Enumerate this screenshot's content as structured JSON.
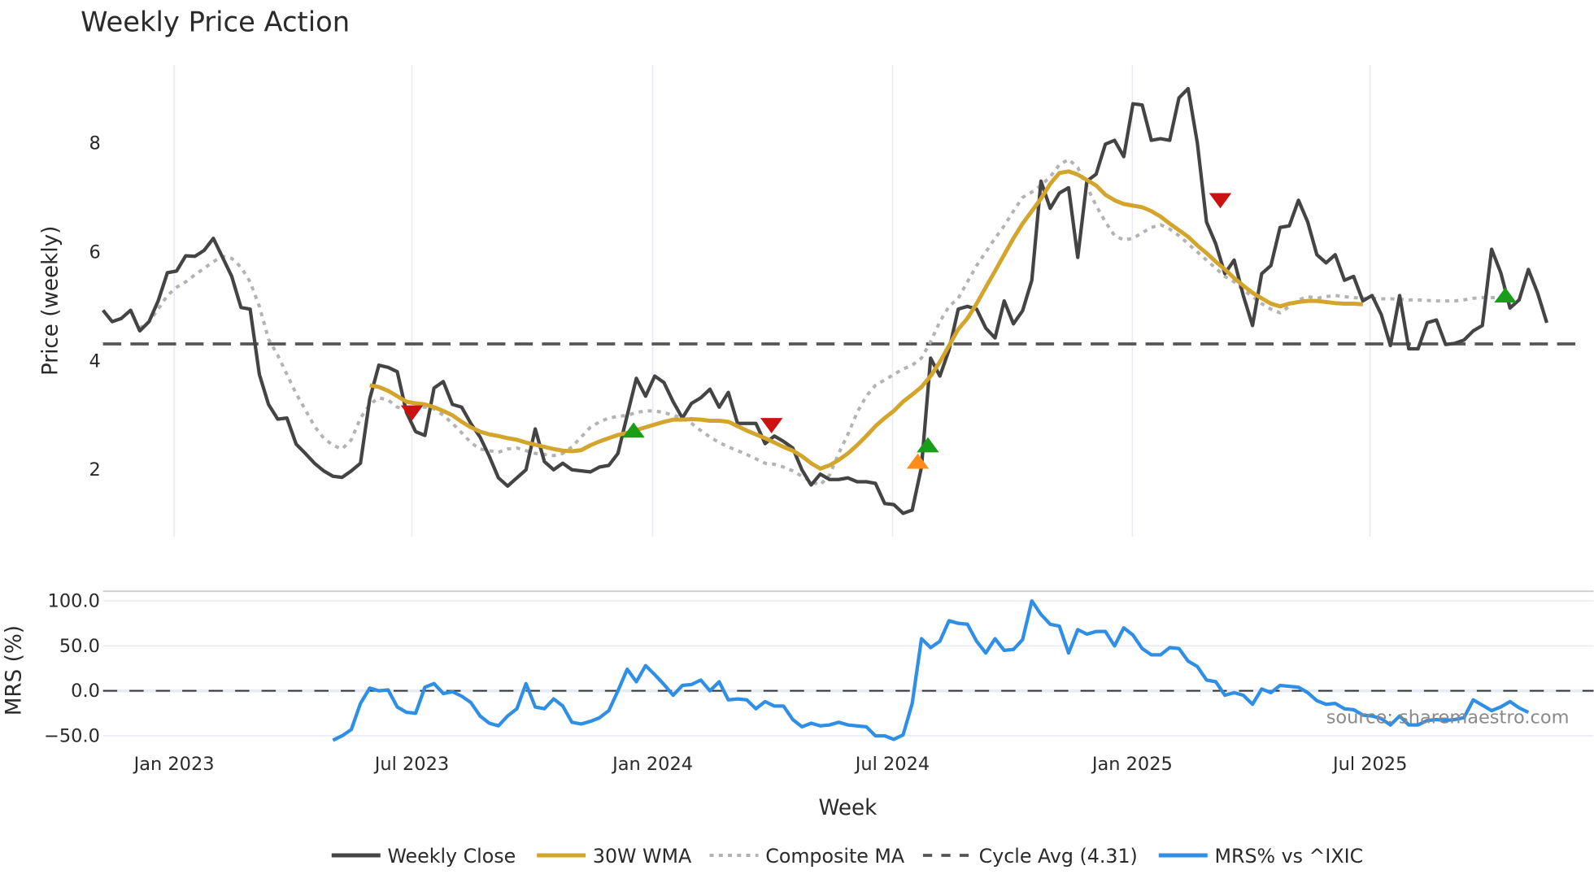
{
  "title": "Weekly Price Action",
  "source_text": "source: sharemaestro.com",
  "axes": {
    "price_ylabel": "Price (weekly)",
    "mrs_ylabel": "MRS (%)",
    "xlabel": "Week",
    "price_ticks": [
      "2",
      "4",
      "6",
      "8"
    ],
    "mrs_ticks": [
      "100.0",
      "50.0",
      "0.0",
      "−50.0"
    ],
    "x_ticks": [
      "Jan 2023",
      "Jul 2023",
      "Jan 2024",
      "Jul 2024",
      "Jan 2025",
      "Jul 2025"
    ]
  },
  "legend": [
    {
      "label": "Weekly Close",
      "color": "#444444",
      "style": "solid"
    },
    {
      "label": "30W WMA",
      "color": "#d4a52c",
      "style": "solid"
    },
    {
      "label": "Composite MA",
      "color": "#b3b3b3",
      "style": "dotted"
    },
    {
      "label": "Cycle Avg (4.31)",
      "color": "#555555",
      "style": "dashed"
    },
    {
      "label": "MRS% vs ^IXIC",
      "color": "#2f8fe6",
      "style": "solid"
    }
  ],
  "colors": {
    "close": "#444444",
    "wma": "#d4a52c",
    "composite": "#b3b3b3",
    "cycle": "#555555",
    "mrs": "#2f8fe6",
    "buy": "#1a9e1a",
    "sell": "#cc1111",
    "cross": "#ff8c1a"
  },
  "chart_data": [
    {
      "type": "line",
      "title": "Weekly Price Action",
      "xlabel": "",
      "ylabel": "Price (weekly)",
      "ylim": [
        0.8,
        9.5
      ],
      "x_ticks": [
        "Jan 2023",
        "Jul 2023",
        "Jan 2024",
        "Jul 2024",
        "Jan 2025",
        "Jul 2025"
      ],
      "x_unit": "week index (week 0 ≈ early Nov 2022)",
      "series": [
        {
          "name": "Weekly Close",
          "start": 0,
          "values": [
            4.93,
            4.72,
            4.78,
            4.93,
            4.55,
            4.72,
            5.1,
            5.62,
            5.65,
            5.93,
            5.92,
            6.03,
            6.25,
            5.9,
            5.55,
            4.98,
            4.95,
            3.75,
            3.2,
            2.93,
            2.95,
            2.47,
            2.3,
            2.12,
            1.98,
            1.88,
            1.86,
            1.98,
            2.12,
            3.3,
            3.92,
            3.88,
            3.8,
            3.05,
            2.7,
            2.63,
            3.5,
            3.62,
            3.2,
            3.15,
            2.85,
            2.6,
            2.25,
            1.85,
            1.7,
            1.85,
            2.0,
            2.75,
            2.15,
            2.0,
            2.12,
            2.0,
            1.98,
            1.96,
            2.05,
            2.08,
            2.3,
            3.0,
            3.68,
            3.35,
            3.72,
            3.6,
            3.25,
            2.95,
            3.22,
            3.32,
            3.48,
            3.15,
            3.42,
            2.85,
            2.85,
            2.85,
            2.48,
            2.62,
            2.52,
            2.4,
            2.0,
            1.72,
            1.92,
            1.82,
            1.82,
            1.85,
            1.78,
            1.78,
            1.75,
            1.38,
            1.36,
            1.2,
            1.26,
            2.05,
            4.05,
            3.72,
            4.2,
            4.95,
            5.0,
            4.95,
            4.6,
            4.42,
            5.1,
            4.68,
            4.92,
            5.48,
            7.3,
            6.8,
            7.08,
            7.18,
            5.9,
            7.3,
            7.43,
            7.98,
            8.05,
            7.75,
            8.72,
            8.7,
            8.05,
            8.08,
            8.05,
            8.83,
            9.0,
            8.0,
            6.55,
            6.15,
            5.6,
            5.85,
            5.2,
            4.65,
            5.6,
            5.75,
            6.45,
            6.48,
            6.95,
            6.55,
            5.95,
            5.8,
            5.95,
            5.48,
            5.55,
            5.1,
            5.2,
            4.85,
            4.28,
            5.2,
            4.22,
            4.22,
            4.7,
            4.75,
            4.3,
            4.32,
            4.38,
            4.55,
            4.65,
            6.05,
            5.62,
            4.97,
            5.12,
            5.68,
            5.25,
            4.7
          ]
        },
        {
          "name": "30W WMA",
          "start": 29,
          "values": [
            3.55,
            3.52,
            3.45,
            3.35,
            3.25,
            3.22,
            3.2,
            3.15,
            3.08,
            3.0,
            2.88,
            2.78,
            2.7,
            2.65,
            2.62,
            2.58,
            2.55,
            2.5,
            2.46,
            2.42,
            2.38,
            2.35,
            2.34,
            2.36,
            2.45,
            2.52,
            2.58,
            2.64,
            2.68,
            2.73,
            2.78,
            2.83,
            2.88,
            2.92,
            2.92,
            2.93,
            2.92,
            2.9,
            2.9,
            2.88,
            2.8,
            2.72,
            2.65,
            2.58,
            2.5,
            2.42,
            2.35,
            2.25,
            2.12,
            2.02,
            2.08,
            2.18,
            2.3,
            2.45,
            2.62,
            2.8,
            2.95,
            3.08,
            3.25,
            3.38,
            3.52,
            3.72,
            3.98,
            4.28,
            4.58,
            4.78,
            5.05,
            5.35,
            5.65,
            5.95,
            6.25,
            6.52,
            6.75,
            6.98,
            7.25,
            7.45,
            7.48,
            7.42,
            7.32,
            7.22,
            7.05,
            6.95,
            6.88,
            6.85,
            6.82,
            6.75,
            6.65,
            6.52,
            6.4,
            6.28,
            6.12,
            5.98,
            5.82,
            5.68,
            5.52,
            5.38,
            5.25,
            5.15,
            5.05,
            5.0,
            5.05,
            5.08,
            5.1,
            5.1,
            5.08,
            5.06,
            5.05,
            5.05,
            5.04
          ]
        },
        {
          "name": "Composite MA",
          "start": 4,
          "values": [
            4.6,
            4.72,
            4.95,
            5.2,
            5.35,
            5.45,
            5.58,
            5.7,
            5.82,
            5.92,
            5.88,
            5.72,
            5.45,
            5.0,
            4.4,
            4.1,
            3.75,
            3.4,
            3.1,
            2.8,
            2.58,
            2.45,
            2.38,
            2.55,
            2.95,
            3.2,
            3.32,
            3.28,
            3.15,
            3.12,
            3.15,
            3.15,
            3.12,
            3.0,
            2.85,
            2.68,
            2.5,
            2.38,
            2.35,
            2.32,
            2.38,
            2.4,
            2.35,
            2.3,
            2.28,
            2.26,
            2.3,
            2.42,
            2.6,
            2.78,
            2.88,
            2.95,
            2.98,
            3.0,
            3.05,
            3.08,
            3.08,
            3.05,
            3.0,
            2.95,
            2.85,
            2.72,
            2.6,
            2.5,
            2.42,
            2.35,
            2.28,
            2.2,
            2.12,
            2.1,
            2.05,
            1.98,
            1.88,
            1.78,
            1.72,
            1.9,
            2.3,
            2.65,
            3.05,
            3.35,
            3.55,
            3.65,
            3.75,
            3.85,
            3.92,
            4.05,
            4.35,
            4.72,
            5.0,
            5.15,
            5.45,
            5.75,
            6.0,
            6.25,
            6.48,
            6.75,
            7.0,
            7.1,
            7.22,
            7.38,
            7.6,
            7.7,
            7.55,
            7.2,
            6.85,
            6.55,
            6.3,
            6.22,
            6.25,
            6.35,
            6.45,
            6.5,
            6.42,
            6.3,
            6.15,
            6.0,
            5.85,
            5.7,
            5.55,
            5.45,
            5.3,
            5.18,
            5.05,
            4.95,
            4.88,
            5.0,
            5.12,
            5.18,
            5.15,
            5.18,
            5.2,
            5.18,
            5.16,
            5.15,
            5.15,
            5.14,
            5.14,
            5.13,
            5.12,
            5.12,
            5.11,
            5.1,
            5.1,
            5.1,
            5.12,
            5.15,
            5.16,
            5.16,
            5.17,
            5.18
          ]
        },
        {
          "name": "Cycle Avg (4.31)",
          "constant": 4.31
        }
      ],
      "markers": [
        {
          "type": "sell",
          "week": 33.6,
          "value": 3.05
        },
        {
          "type": "buy",
          "week": 57.7,
          "value": 2.72
        },
        {
          "type": "sell",
          "week": 72.7,
          "value": 2.82
        },
        {
          "type": "cross",
          "week": 88.6,
          "value": 2.15
        },
        {
          "type": "buy",
          "week": 89.7,
          "value": 2.45
        },
        {
          "type": "sell",
          "week": 121.5,
          "value": 6.95
        },
        {
          "type": "buy",
          "week": 152.5,
          "value": 5.2
        }
      ],
      "legend_position": "bottom"
    },
    {
      "type": "line",
      "title": "",
      "xlabel": "Week",
      "ylabel": "MRS (%)",
      "ylim": [
        -60,
        110
      ],
      "y_ticks": [
        -50,
        0,
        50,
        100
      ],
      "series": [
        {
          "name": "MRS% vs ^IXIC",
          "start": 25,
          "values": [
            -55,
            -50,
            -43,
            -14,
            3,
            0,
            1,
            -18,
            -24,
            -25,
            4,
            8,
            -3,
            -1,
            -6,
            -13,
            -28,
            -36,
            -39,
            -28,
            -20,
            8,
            -18,
            -20,
            -9,
            -17,
            -35,
            -37,
            -34,
            -30,
            -22,
            0,
            24,
            10,
            28,
            18,
            7,
            -5,
            6,
            7,
            12,
            0,
            10,
            -10,
            -9,
            -10,
            -20,
            -12,
            -17,
            -17,
            -32,
            -40,
            -36,
            -39,
            -38,
            -35,
            -38,
            -39,
            -40,
            -50,
            -50,
            -54,
            -49,
            -14,
            58,
            48,
            55,
            78,
            75,
            74,
            55,
            42,
            58,
            45,
            46,
            57,
            100,
            85,
            74,
            72,
            42,
            68,
            63,
            66,
            66,
            50,
            70,
            62,
            47,
            40,
            40,
            48,
            47,
            33,
            27,
            12,
            10,
            -5,
            -2,
            -5,
            -15,
            2,
            -2,
            6,
            5,
            4,
            -2,
            -11,
            -15,
            -14,
            -20,
            -21,
            -27,
            -28,
            -31,
            -38,
            -28,
            -38,
            -38,
            -33,
            -32,
            -33,
            -32,
            -30,
            -10,
            -16,
            -22,
            -18,
            -12,
            -19,
            -24
          ]
        },
        {
          "name": "Zero line",
          "constant": 0
        }
      ]
    }
  ]
}
